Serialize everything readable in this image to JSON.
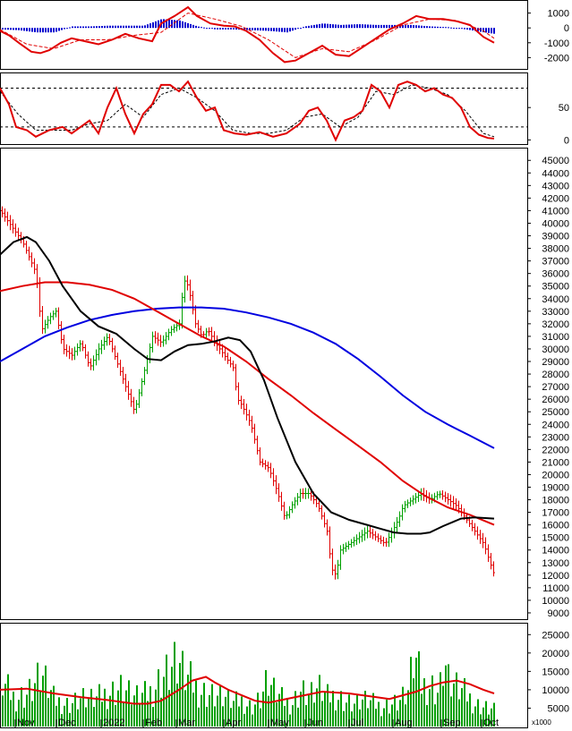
{
  "chart_data": [
    {
      "type": "line",
      "panel": "macd",
      "y_ticks": [
        "1000",
        "0",
        "-1000",
        "-2000"
      ],
      "ylim": [
        -2700,
        1700
      ],
      "colors": {
        "macd": "#e00000",
        "signal": "#e00000",
        "histogram": "#0000d0"
      },
      "series": [
        {
          "role": "macd",
          "x": [
            0,
            10,
            22,
            35,
            45,
            55,
            68,
            80,
            95,
            110,
            125,
            140,
            155,
            170,
            180,
            195,
            210,
            220,
            235,
            250,
            262,
            275,
            290,
            305,
            318,
            330,
            345,
            360,
            375,
            390,
            405,
            420,
            435,
            450,
            465,
            480,
            495,
            510,
            525,
            540,
            552
          ],
          "values": [
            -200,
            -500,
            -1050,
            -1600,
            -1700,
            -1500,
            -1000,
            -700,
            -900,
            -1100,
            -800,
            -400,
            -700,
            -900,
            300,
            800,
            1400,
            800,
            300,
            150,
            100,
            -200,
            -800,
            -1700,
            -2300,
            -2200,
            -1700,
            -1200,
            -1800,
            -1900,
            -1300,
            -700,
            -100,
            300,
            800,
            600,
            600,
            450,
            200,
            -600,
            -1000
          ]
        },
        {
          "role": "signal",
          "x": [
            0,
            30,
            60,
            90,
            120,
            150,
            180,
            210,
            240,
            270,
            300,
            330,
            360,
            390,
            420,
            450,
            480,
            510,
            540,
            552
          ],
          "values": [
            -100,
            -1100,
            -1400,
            -800,
            -800,
            -500,
            -300,
            1000,
            600,
            100,
            -800,
            -2000,
            -1400,
            -1600,
            -800,
            200,
            600,
            500,
            -200,
            -700
          ]
        },
        {
          "role": "histogram",
          "x": [
            0,
            20,
            40,
            60,
            80,
            100,
            120,
            140,
            160,
            180,
            200,
            220,
            240,
            260,
            280,
            300,
            320,
            340,
            360,
            380,
            400,
            420,
            440,
            460,
            480,
            500,
            520,
            540,
            552
          ],
          "values": [
            -100,
            -150,
            -300,
            -300,
            100,
            100,
            150,
            150,
            150,
            600,
            500,
            100,
            -100,
            -100,
            -150,
            -200,
            -300,
            100,
            300,
            200,
            250,
            200,
            200,
            200,
            100,
            50,
            -100,
            -300,
            -400
          ]
        }
      ]
    },
    {
      "type": "line",
      "panel": "stochastic",
      "y_ticks": [
        "50",
        "0"
      ],
      "ylim": [
        -5,
        100
      ],
      "reference_levels": [
        80,
        20
      ],
      "colors": {
        "fast": "#e00000",
        "slow": "#000000"
      },
      "series": [
        {
          "role": "fast",
          "x": [
            0,
            10,
            18,
            30,
            40,
            55,
            70,
            80,
            90,
            100,
            110,
            120,
            130,
            140,
            150,
            160,
            170,
            180,
            190,
            200,
            210,
            220,
            230,
            240,
            250,
            262,
            275,
            290,
            305,
            320,
            335,
            345,
            355,
            365,
            375,
            385,
            395,
            405,
            415,
            425,
            435,
            445,
            455,
            465,
            475,
            485,
            495,
            505,
            515,
            525,
            535,
            545,
            552
          ],
          "values": [
            80,
            55,
            20,
            15,
            5,
            15,
            20,
            10,
            20,
            30,
            10,
            50,
            80,
            40,
            10,
            40,
            55,
            85,
            85,
            75,
            90,
            65,
            45,
            50,
            15,
            10,
            8,
            12,
            5,
            10,
            25,
            45,
            50,
            30,
            0,
            30,
            35,
            45,
            85,
            75,
            50,
            85,
            90,
            85,
            75,
            80,
            70,
            65,
            50,
            20,
            8,
            3,
            2
          ]
        },
        {
          "role": "slow",
          "x": [
            0,
            20,
            40,
            60,
            80,
            100,
            120,
            140,
            160,
            180,
            200,
            220,
            240,
            260,
            280,
            300,
            320,
            340,
            360,
            380,
            400,
            420,
            440,
            460,
            480,
            500,
            520,
            540,
            552
          ],
          "values": [
            75,
            40,
            15,
            15,
            15,
            25,
            30,
            55,
            35,
            70,
            80,
            65,
            45,
            15,
            10,
            10,
            15,
            35,
            40,
            20,
            35,
            75,
            70,
            85,
            80,
            70,
            45,
            10,
            5
          ]
        }
      ]
    },
    {
      "type": "line",
      "panel": "price",
      "title": "",
      "ylim": [
        8500,
        45800
      ],
      "y_ticks": [
        "45000",
        "44000",
        "43000",
        "42000",
        "41000",
        "40000",
        "39000",
        "38000",
        "37000",
        "36000",
        "35000",
        "34000",
        "33000",
        "32000",
        "31000",
        "30000",
        "29000",
        "28000",
        "27000",
        "26000",
        "25000",
        "24000",
        "23000",
        "22000",
        "21000",
        "20000",
        "19000",
        "18000",
        "17000",
        "16000",
        "15000",
        "14000",
        "13000",
        "12000",
        "11000",
        "10000",
        "9000"
      ],
      "colors": {
        "up_bar": "#00a000",
        "down_bar": "#e00000",
        "ma_short": "#000000",
        "ma_medium": "#e00000",
        "ma_long": "#0000e0"
      },
      "price_path": {
        "x": [
          0,
          15,
          25,
          40,
          46,
          55,
          62,
          70,
          80,
          90,
          100,
          110,
          120,
          130,
          140,
          150,
          160,
          170,
          180,
          190,
          200,
          205,
          210,
          218,
          225,
          232,
          240,
          250,
          260,
          265,
          270,
          280,
          290,
          300,
          310,
          318,
          325,
          335,
          345,
          355,
          365,
          370,
          375,
          380,
          390,
          400,
          410,
          420,
          430,
          438,
          445,
          450,
          460,
          470,
          480,
          490,
          500,
          510,
          520,
          530,
          540,
          547,
          552
        ],
        "values": [
          41000,
          39500,
          38500,
          36000,
          31500,
          32500,
          33000,
          30000,
          29500,
          30500,
          28500,
          30000,
          31000,
          29000,
          27000,
          25000,
          28000,
          31000,
          30500,
          31500,
          32000,
          35500,
          35000,
          32000,
          31000,
          31500,
          30500,
          29500,
          28500,
          26000,
          25500,
          24000,
          21000,
          20500,
          18500,
          16500,
          17500,
          18500,
          18500,
          17500,
          15500,
          12500,
          12000,
          14000,
          14500,
          15000,
          15500,
          15000,
          14500,
          15500,
          16500,
          17500,
          18000,
          18500,
          18000,
          18500,
          18000,
          17500,
          16500,
          15500,
          14500,
          13000,
          12000
        ]
      },
      "series": [
        {
          "name": "",
          "role": "ma_short",
          "x": [
            0,
            15,
            30,
            40,
            55,
            70,
            90,
            110,
            130,
            150,
            165,
            180,
            195,
            210,
            225,
            240,
            255,
            268,
            280,
            295,
            310,
            330,
            350,
            370,
            390,
            410,
            425,
            440,
            455,
            470,
            480,
            495,
            505,
            515,
            530,
            552
          ],
          "values": [
            37500,
            38500,
            38900,
            38500,
            37000,
            35000,
            33000,
            31800,
            31200,
            30000,
            29200,
            29100,
            29800,
            30300,
            30400,
            30600,
            30900,
            30700,
            29800,
            27500,
            24500,
            21000,
            18500,
            17000,
            16400,
            16000,
            15700,
            15400,
            15300,
            15300,
            15400,
            15900,
            16200,
            16500,
            16600,
            16500
          ]
        },
        {
          "name": "",
          "role": "ma_medium",
          "x": [
            0,
            25,
            50,
            75,
            100,
            125,
            150,
            175,
            200,
            225,
            250,
            275,
            300,
            325,
            350,
            375,
            400,
            425,
            450,
            475,
            500,
            525,
            552
          ],
          "values": [
            34600,
            35000,
            35300,
            35300,
            35100,
            34700,
            34000,
            33000,
            32000,
            31000,
            30200,
            29000,
            27600,
            26300,
            24900,
            23600,
            22300,
            21000,
            19500,
            18300,
            17400,
            16800,
            16000
          ]
        },
        {
          "name": "",
          "role": "ma_long",
          "x": [
            0,
            25,
            50,
            75,
            100,
            125,
            150,
            175,
            200,
            225,
            250,
            275,
            300,
            325,
            350,
            375,
            400,
            425,
            450,
            475,
            500,
            525,
            552
          ],
          "values": [
            29000,
            30000,
            31000,
            31700,
            32300,
            32700,
            33000,
            33200,
            33300,
            33300,
            33200,
            32900,
            32500,
            32000,
            31300,
            30400,
            29200,
            27800,
            26300,
            25000,
            24000,
            23100,
            22100
          ]
        }
      ]
    },
    {
      "type": "bar",
      "panel": "volume",
      "unit_label": "x1000",
      "y_ticks": [
        "25000",
        "20000",
        "15000",
        "10000",
        "5000"
      ],
      "ylim": [
        0,
        27500
      ],
      "colors": {
        "bars": "#00a000",
        "ma": "#e00000"
      },
      "x_categories": [
        "Nov",
        "Dec",
        "2022",
        "Feb",
        "Mar",
        "Apr",
        "May",
        "Jun",
        "Jul",
        "Aug",
        "Sep",
        "Oct"
      ],
      "series": [
        {
          "name": "",
          "role": "bars",
          "x": [
            0,
            15,
            30,
            45,
            60,
            75,
            90,
            105,
            120,
            135,
            150,
            165,
            180,
            195,
            200,
            205,
            210,
            220,
            230,
            240,
            250,
            260,
            270,
            280,
            290,
            298,
            305,
            315,
            325,
            335,
            345,
            355,
            365,
            375,
            385,
            395,
            405,
            415,
            425,
            435,
            445,
            455,
            462,
            470,
            480,
            490,
            495,
            500,
            510,
            520,
            530,
            540,
            552
          ],
          "values": [
            15000,
            10000,
            12000,
            18000,
            9000,
            8000,
            10000,
            9000,
            12000,
            14000,
            10000,
            11000,
            18000,
            22000,
            21000,
            17000,
            16000,
            13000,
            12000,
            11000,
            10000,
            8000,
            9000,
            7000,
            10000,
            16000,
            12000,
            9000,
            8000,
            13000,
            11000,
            13000,
            10000,
            11000,
            9000,
            8000,
            9000,
            8000,
            7000,
            8000,
            9000,
            12000,
            24000,
            14000,
            15000,
            12000,
            25000,
            16000,
            13000,
            11000,
            8000,
            7000,
            6000
          ]
        },
        {
          "name": "",
          "role": "ma",
          "x": [
            0,
            30,
            60,
            90,
            120,
            150,
            165,
            180,
            200,
            215,
            230,
            240,
            255,
            270,
            285,
            300,
            330,
            360,
            390,
            420,
            435,
            450,
            465,
            480,
            495,
            510,
            525,
            540,
            552
          ],
          "values": [
            10000,
            10300,
            9000,
            8000,
            7200,
            6200,
            6200,
            7000,
            10000,
            12500,
            13500,
            12000,
            10000,
            8500,
            7000,
            6500,
            8000,
            9500,
            9000,
            8000,
            7500,
            8500,
            9500,
            11000,
            12000,
            12500,
            11500,
            10000,
            9000
          ]
        }
      ]
    }
  ]
}
